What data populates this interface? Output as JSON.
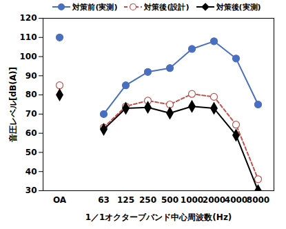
{
  "chart_data": {
    "type": "line",
    "x_label": "1／1オクターブバンド中心周波数(Hz)",
    "y_label": "音圧レベル[dB(A)]",
    "categories": [
      "OA",
      null,
      "63",
      "125",
      "250",
      "500",
      "1000",
      "2000",
      "4000",
      "8000"
    ],
    "series": [
      {
        "name": "対策前(実測)",
        "color": "#4A6FC0",
        "marker": "circle",
        "line_style": "solid",
        "values": [
          110,
          null,
          70,
          85,
          92,
          94,
          104,
          108,
          99,
          75
        ]
      },
      {
        "name": "対策後(設計)",
        "color": "#C0504D",
        "marker": "circle_open",
        "line_style": "dashed",
        "values": [
          85,
          null,
          63,
          74,
          77,
          75,
          80.5,
          79,
          64.5,
          36
        ]
      },
      {
        "name": "対策後(実測)",
        "color": "#000000",
        "marker": "diamond",
        "line_style": "solid",
        "values": [
          80,
          null,
          62,
          73,
          73.5,
          70.5,
          74,
          73,
          59,
          30
        ]
      }
    ],
    "ylim": [
      30,
      120
    ],
    "yticks": [
      30,
      40,
      50,
      60,
      70,
      80,
      90,
      100,
      110,
      120
    ],
    "grid": false,
    "legend": "top"
  }
}
